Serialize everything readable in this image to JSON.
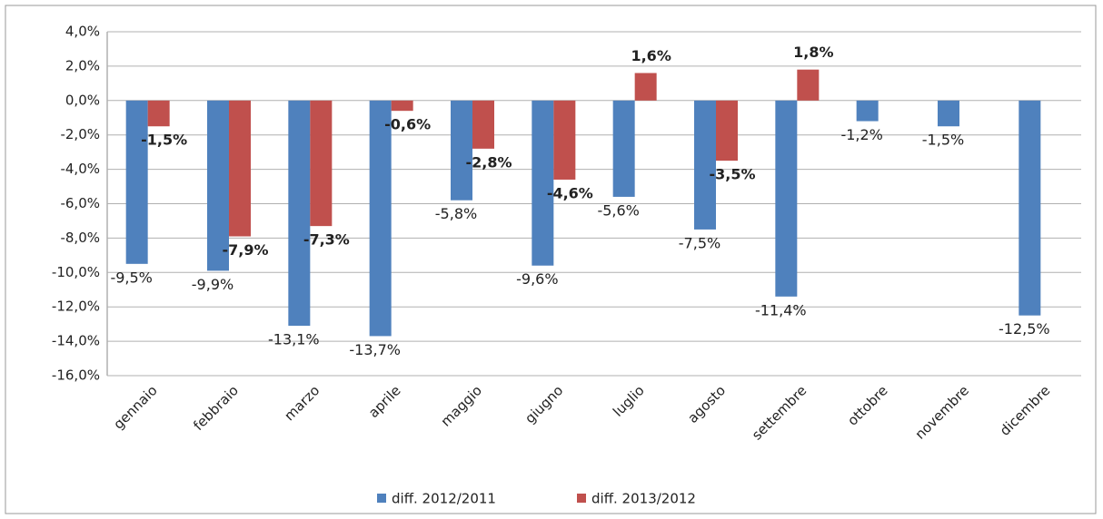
{
  "chart_data": {
    "type": "bar",
    "categories": [
      "gennaio",
      "febbraio",
      "marzo",
      "aprile",
      "maggio",
      "giugno",
      "luglio",
      "agosto",
      "settembre",
      "ottobre",
      "novembre",
      "dicembre"
    ],
    "series": [
      {
        "name": "diff. 2012/2011",
        "color": "#4f81bd",
        "values": [
          -9.5,
          -9.9,
          -13.1,
          -13.7,
          -5.8,
          -9.6,
          -5.6,
          -7.5,
          -11.4,
          -1.2,
          -1.5,
          -12.5
        ],
        "value_labels": [
          "-9,5%",
          "-9,9%",
          "-13,1%",
          "-13,7%",
          "-5,8%",
          "-9,6%",
          "-5,6%",
          "-7,5%",
          "-11,4%",
          "-1,2%",
          "-1,5%",
          "-12,5%"
        ]
      },
      {
        "name": "diff. 2013/2012",
        "color": "#c0504d",
        "values": [
          -1.5,
          -7.9,
          -7.3,
          -0.6,
          -2.8,
          -4.6,
          1.6,
          -3.5,
          1.8,
          null,
          null,
          null
        ],
        "value_labels": [
          "-1,5%",
          "-7,9%",
          "-7,3%",
          "-0,6%",
          "-2,8%",
          "-4,6%",
          "1,6%",
          "-3,5%",
          "1,8%",
          null,
          null,
          null
        ]
      }
    ],
    "ylim": [
      -16,
      4
    ],
    "yticks": [
      {
        "value": -16,
        "label": "-16,0%"
      },
      {
        "value": -14,
        "label": "-14,0%"
      },
      {
        "value": -12,
        "label": "-12,0%"
      },
      {
        "value": -10,
        "label": "-10,0%"
      },
      {
        "value": -8,
        "label": "-8,0%"
      },
      {
        "value": -6,
        "label": "-6,0%"
      },
      {
        "value": -4,
        "label": "-4,0%"
      },
      {
        "value": -2,
        "label": "-2,0%"
      },
      {
        "value": 0,
        "label": "0,0%"
      },
      {
        "value": 2,
        "label": "2,0%"
      },
      {
        "value": 4,
        "label": "4,0%"
      }
    ],
    "grid": true,
    "legend": "bottom"
  }
}
